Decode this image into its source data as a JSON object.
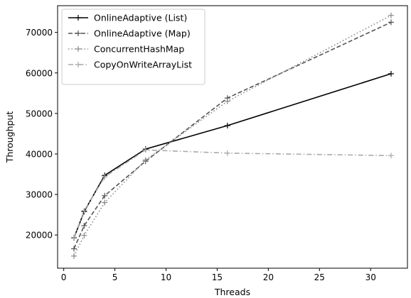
{
  "chart_data": {
    "type": "line",
    "title": "",
    "xlabel": "Threads",
    "ylabel": "Throughput",
    "xlim": [
      -0.6,
      33.6
    ],
    "ylim": [
      11800,
      76600
    ],
    "xticks": [
      0,
      5,
      10,
      15,
      20,
      25,
      30
    ],
    "yticks": [
      20000,
      30000,
      40000,
      50000,
      60000,
      70000
    ],
    "grid": false,
    "legend_position": "top-left",
    "series": [
      {
        "name": "OnlineAdaptive (List)",
        "color": "#000000",
        "line_style": "solid",
        "marker": "plus",
        "x": [
          1,
          2,
          4,
          8,
          16,
          32
        ],
        "y": [
          19300,
          25800,
          34700,
          41200,
          47000,
          59800
        ]
      },
      {
        "name": "OnlineAdaptive (Map)",
        "color": "#555555",
        "line_style": "dashed",
        "marker": "plus",
        "x": [
          1,
          2,
          4,
          8,
          16,
          32
        ],
        "y": [
          16600,
          22300,
          29700,
          38200,
          53800,
          72500
        ]
      },
      {
        "name": "ConcurrentHashMap",
        "color": "#888888",
        "line_style": "dotted",
        "marker": "plus",
        "x": [
          1,
          2,
          4,
          8,
          16,
          32
        ],
        "y": [
          14800,
          19900,
          28000,
          38500,
          53000,
          74200
        ]
      },
      {
        "name": "CopyOnWriteArrayList",
        "color": "#aaaaaa",
        "line_style": "dashdot",
        "marker": "plus",
        "x": [
          1,
          2,
          4,
          8,
          16,
          32
        ],
        "y": [
          19400,
          26000,
          34300,
          41000,
          40200,
          39600
        ]
      }
    ]
  }
}
